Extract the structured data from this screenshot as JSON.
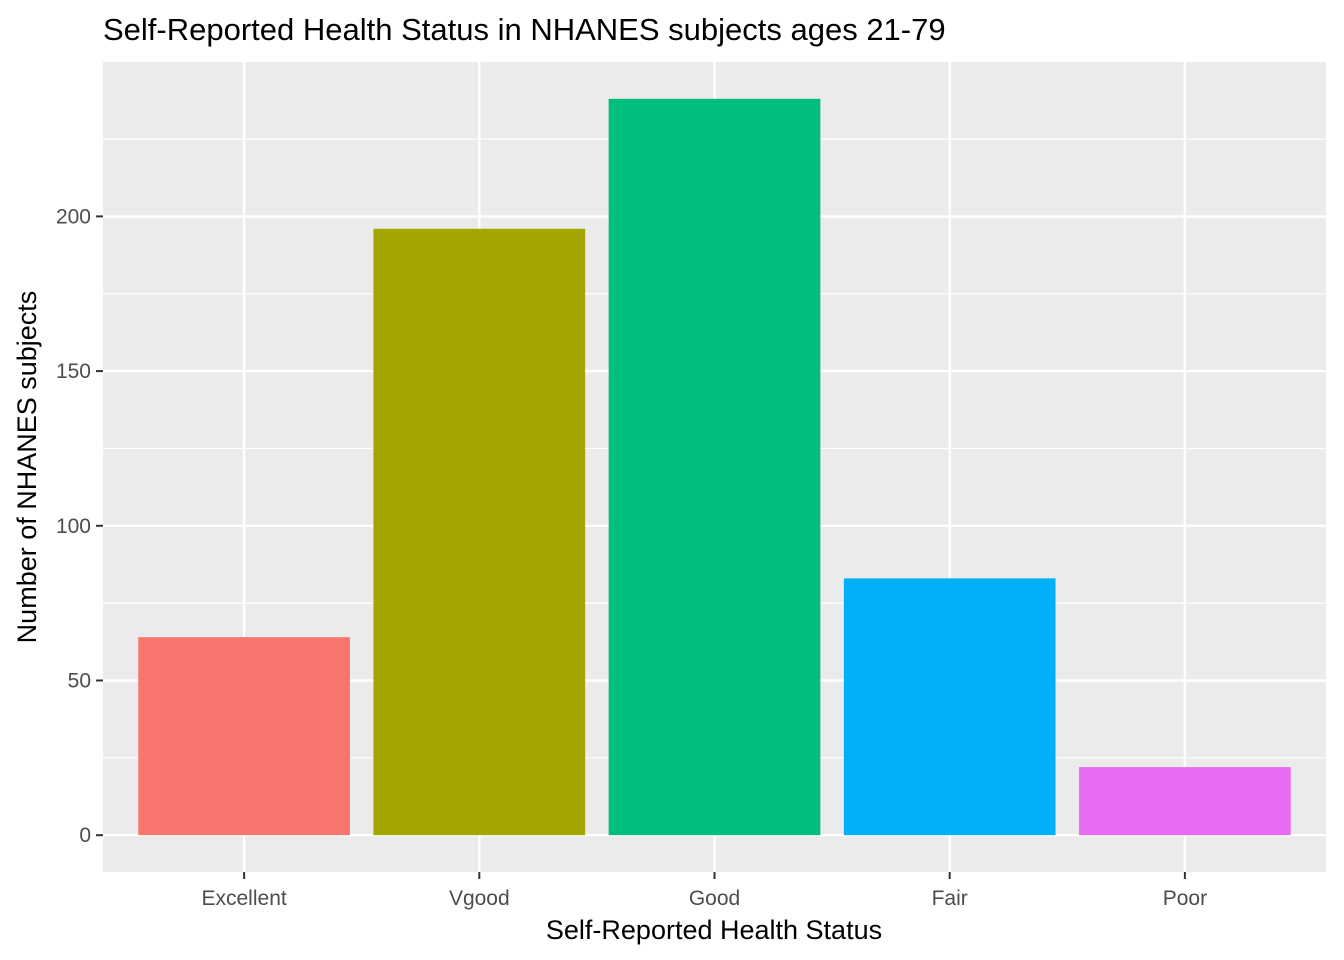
{
  "chart_data": {
    "type": "bar",
    "title": "Self-Reported Health Status in NHANES subjects ages 21-79",
    "xlabel": "Self-Reported Health Status",
    "ylabel": "Number of NHANES subjects",
    "categories": [
      "Excellent",
      "Vgood",
      "Good",
      "Fair",
      "Poor"
    ],
    "values": [
      64,
      196,
      238,
      83,
      22
    ],
    "colors": [
      "#F8766D",
      "#A3A500",
      "#00BF7D",
      "#00B0F6",
      "#E76BF3"
    ],
    "ylim": [
      -11.9,
      249.9
    ],
    "yticks": [
      0,
      50,
      100,
      150,
      200
    ],
    "ytick_labels": [
      "0",
      "50",
      "100",
      "150",
      "200"
    ],
    "grid": true,
    "legend": "none",
    "panel_background": "#EBEBEB",
    "gridline_color": "#FFFFFF"
  }
}
